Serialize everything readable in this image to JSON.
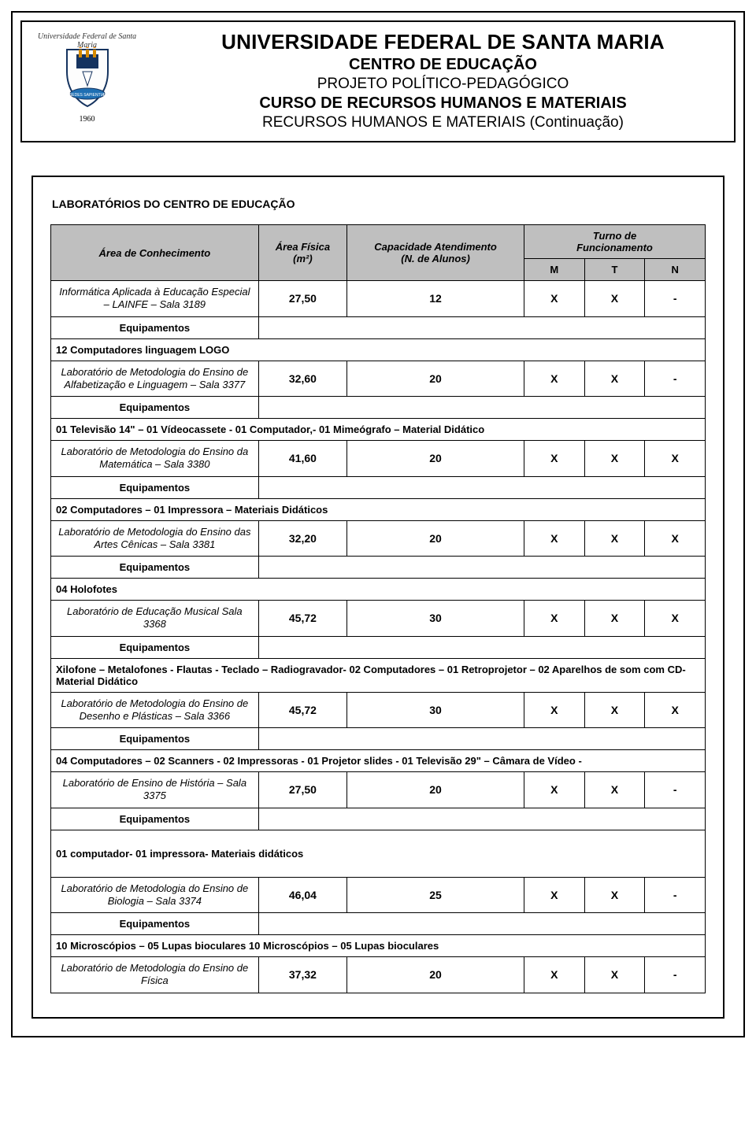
{
  "header": {
    "university": "UNIVERSIDADE FEDERAL DE SANTA MARIA",
    "center": "CENTRO DE EDUCAÇÃO",
    "project": "PROJETO POLÍTICO-PEDAGÓGICO",
    "course": "CURSO DE RECURSOS HUMANOS E MATERIAIS",
    "subtitle": "RECURSOS HUMANOS E MATERIAIS (Continuação)",
    "logo_arc": "Universidade Federal de Santa Maria",
    "logo_year": "1960"
  },
  "section_title": "LABORATÓRIOS DO CENTRO DE EDUCAÇÃO",
  "columns": {
    "area": "Área de Conhecimento",
    "fisica_l1": "Área Física",
    "fisica_l2": "(m²)",
    "cap_l1": "Capacidade Atendimento",
    "cap_l2": "(N. de Alunos)",
    "turno_l1": "Turno de",
    "turno_l2": "Funcionamento",
    "m": "M",
    "t": "T",
    "n": "N"
  },
  "eq_label": "Equipamentos",
  "rows": [
    {
      "name": "Informática Aplicada à Educação Especial – LAINFE – Sala 3189",
      "area": "27,50",
      "cap": "12",
      "m": "X",
      "t": "X",
      "n": "-",
      "equip": "12 Computadores linguagem LOGO"
    },
    {
      "name": "Laboratório de Metodologia do Ensino de Alfabetização e Linguagem – Sala 3377",
      "area": "32,60",
      "cap": "20",
      "m": "X",
      "t": "X",
      "n": "-",
      "equip": "01 Televisão 14\" – 01 Vídeocassete - 01 Computador,- 01 Mimeógrafo – Material Didático"
    },
    {
      "name": "Laboratório de Metodologia do Ensino da Matemática – Sala 3380",
      "area": "41,60",
      "cap": "20",
      "m": "X",
      "t": "X",
      "n": "X",
      "equip": "02 Computadores – 01 Impressora – Materiais Didáticos"
    },
    {
      "name": "Laboratório de Metodologia do Ensino das Artes Cênicas – Sala 3381",
      "area": "32,20",
      "cap": "20",
      "m": "X",
      "t": "X",
      "n": "X",
      "equip": "04 Holofotes"
    },
    {
      "name": "Laboratório de Educação Musical Sala 3368",
      "area": "45,72",
      "cap": "30",
      "m": "X",
      "t": "X",
      "n": "X",
      "equip": "Xilofone – Metalofones - Flautas - Teclado – Radiogravador-  02  Computadores – 01 Retroprojetor – 02 Aparelhos de som  com  CD- Material Didático"
    },
    {
      "name": "Laboratório de Metodologia do Ensino de Desenho e Plásticas – Sala 3366",
      "area": "45,72",
      "cap": "30",
      "m": "X",
      "t": "X",
      "n": "X",
      "equip": "04 Computadores – 02 Scanners - 02 Impressoras - 01 Projetor slides - 01 Televisão 29\" – Câmara de Vídeo -"
    },
    {
      "name": "Laboratório de Ensino de História – Sala 3375",
      "area": "27,50",
      "cap": "20",
      "m": "X",
      "t": "X",
      "n": "-",
      "equip": "01 computador- 01 impressora- Materiais didáticos"
    },
    {
      "name": "Laboratório de Metodologia do Ensino de Biologia – Sala 3374",
      "area": "46,04",
      "cap": "25",
      "m": "X",
      "t": "X",
      "n": "-",
      "equip": "10 Microscópios – 05 Lupas bioculares 10 Microscópios – 05 Lupas bioculares"
    },
    {
      "name": "Laboratório de Metodologia do Ensino de Física",
      "area": "37,32",
      "cap": "20",
      "m": "X",
      "t": "X",
      "n": "-",
      "equip": null
    }
  ],
  "colors": {
    "header_bg": "#bfbfbf",
    "border": "#000000",
    "page_bg": "#ffffff",
    "text": "#000000"
  },
  "typography": {
    "body_font": "Arial",
    "header_title_pt": 26,
    "table_font_pt": 13
  }
}
